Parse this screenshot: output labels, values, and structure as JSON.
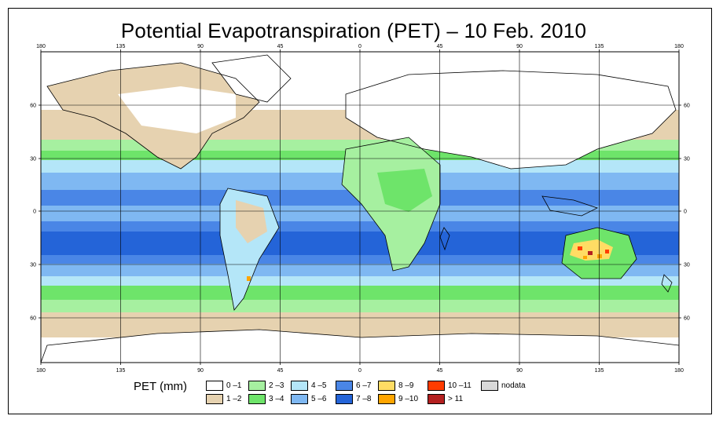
{
  "title": "Potential Evapotranspiration (PET) – 10 Feb. 2010",
  "axes": {
    "lon_ticks_top": [
      "180",
      "135",
      "90",
      "45",
      "0",
      "45",
      "90",
      "135",
      "180"
    ],
    "lon_ticks_bottom": [
      "180",
      "135",
      "90",
      "45",
      "0",
      "45",
      "90",
      "135",
      "180"
    ],
    "lat_ticks_left": [
      "60",
      "30",
      "0",
      "30",
      "60"
    ],
    "lat_ticks_right": [
      "60",
      "30",
      "0",
      "30",
      "60"
    ]
  },
  "legend": {
    "title": "PET (mm)",
    "items": [
      {
        "label": "0 –1",
        "color": "#ffffff"
      },
      {
        "label": "1 –2",
        "color": "#e6d2b0"
      },
      {
        "label": "2 –3",
        "color": "#a6f0a0"
      },
      {
        "label": "3 –4",
        "color": "#6ee46a"
      },
      {
        "label": "4 –5",
        "color": "#b4e6f8"
      },
      {
        "label": "5 –6",
        "color": "#7fb8f2"
      },
      {
        "label": "6 –7",
        "color": "#4a86e6"
      },
      {
        "label": "7 –8",
        "color": "#2464d8"
      },
      {
        "label": "8 –9",
        "color": "#ffdc64"
      },
      {
        "label": "9 –10",
        "color": "#ffa500"
      },
      {
        "label": "10 –11",
        "color": "#ff3c00"
      },
      {
        "label": "> 11",
        "color": "#b42020"
      },
      {
        "label": "nodata",
        "color": "#d9d9d9"
      }
    ]
  }
}
